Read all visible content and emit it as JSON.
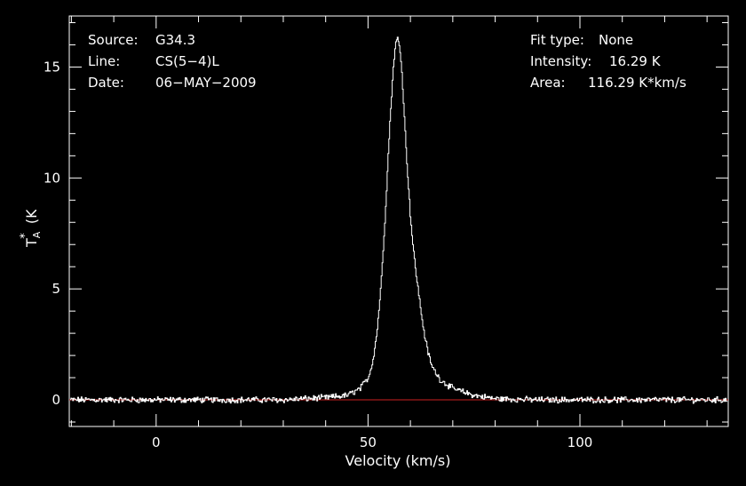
{
  "info": {
    "source_label": "Source:",
    "source": "G34.3",
    "line_label": "Line:",
    "line": "CS(5−4)L",
    "date_label": "Date:",
    "date": "06−MAY−2009",
    "fit_label": "Fit type:",
    "fit": "None",
    "intensity_label": "Intensity:",
    "intensity": "16.29 K",
    "area_label": "Area:",
    "area": "116.29 K*km/s"
  },
  "chart_data": {
    "type": "line",
    "xlabel": "Velocity (km/s)",
    "ylabel": "T*A (K)",
    "xlim": [
      -20.5,
      135
    ],
    "ylim": [
      -1.2,
      17.3
    ],
    "xticks": [
      0,
      50,
      100
    ],
    "yticks": [
      0,
      5,
      10,
      15
    ],
    "colors": {
      "spectrum": "#ffffff",
      "baseline": "#cc1f1f",
      "axes": "#ffffff"
    },
    "baseline": 0,
    "peak": {
      "velocity": 57.0,
      "intensity": 16.29
    },
    "series": [
      {
        "x": [
          -20,
          -10,
          0,
          10,
          20,
          30,
          40,
          45,
          48,
          50,
          51,
          52,
          53,
          54,
          55,
          56,
          56.5,
          57,
          57.5,
          58,
          59,
          60,
          60.5,
          61,
          62,
          63,
          64,
          65,
          67,
          70,
          75,
          80,
          90,
          100,
          110,
          120,
          135
        ],
        "y": [
          0,
          0,
          0,
          0,
          0,
          0,
          0.1,
          0.2,
          0.5,
          1.0,
          1.7,
          3.0,
          5.2,
          8.4,
          12.2,
          15.3,
          16.1,
          16.29,
          15.8,
          14.5,
          11.0,
          8.1,
          7.0,
          6.1,
          4.6,
          3.2,
          2.2,
          1.5,
          0.9,
          0.5,
          0.2,
          0.05,
          0,
          0,
          0,
          0,
          0
        ]
      }
    ]
  }
}
